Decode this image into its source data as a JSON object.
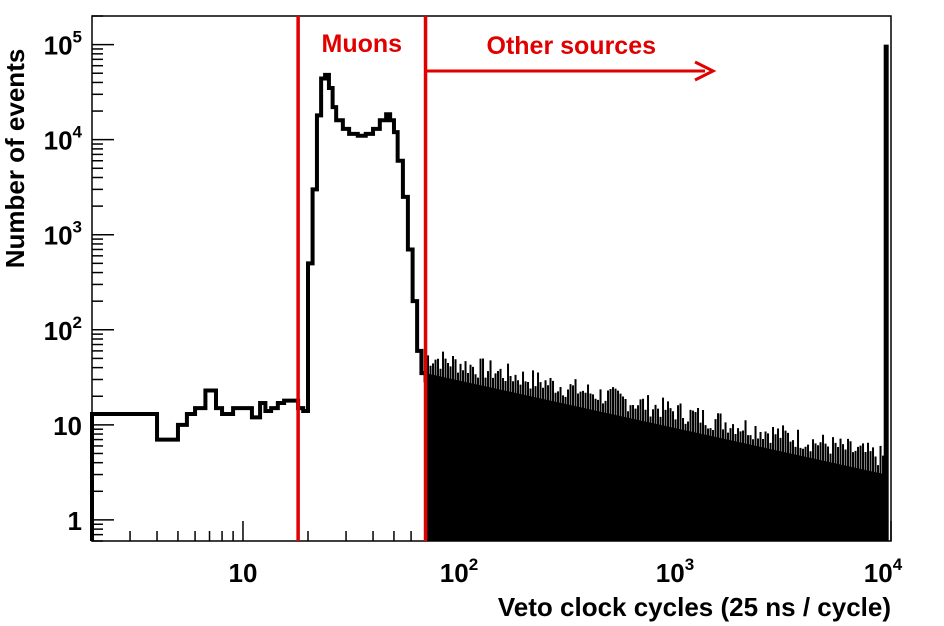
{
  "chart_data": {
    "type": "histogram",
    "xlabel": "Veto clock cycles (25 ns / cycle)",
    "ylabel": "Number of events",
    "x_scale": "log",
    "y_scale": "log",
    "xlim": [
      2,
      10000
    ],
    "ylim": [
      0.6,
      200000
    ],
    "grid": false,
    "legend": "none",
    "colors": {
      "histogram": "#000000",
      "annotation": "#e00000"
    },
    "x_ticks": [
      {
        "value": 10,
        "base": "10",
        "exp": ""
      },
      {
        "value": 100,
        "base": "10",
        "exp": "2"
      },
      {
        "value": 1000,
        "base": "10",
        "exp": "3"
      },
      {
        "value": 10000,
        "base": "10",
        "exp": "4"
      }
    ],
    "y_ticks": [
      {
        "value": 1,
        "base": "1",
        "exp": ""
      },
      {
        "value": 10,
        "base": "10",
        "exp": ""
      },
      {
        "value": 100,
        "base": "10",
        "exp": "2"
      },
      {
        "value": 1000,
        "base": "10",
        "exp": "3"
      },
      {
        "value": 10000,
        "base": "10",
        "exp": "4"
      },
      {
        "value": 100000,
        "base": "10",
        "exp": "5"
      }
    ],
    "series": [
      {
        "points": [
          [
            2,
            13
          ],
          [
            3,
            13
          ],
          [
            4,
            7
          ],
          [
            5,
            10
          ],
          [
            5.5,
            13
          ],
          [
            6,
            15
          ],
          [
            6.7,
            23
          ],
          [
            7.5,
            15
          ],
          [
            8,
            13
          ],
          [
            9,
            15
          ],
          [
            10,
            15
          ],
          [
            11,
            12
          ],
          [
            12,
            17
          ],
          [
            12.7,
            14
          ],
          [
            13.5,
            15
          ],
          [
            14.5,
            17
          ],
          [
            15.5,
            18
          ],
          [
            17,
            18
          ],
          [
            18,
            15
          ],
          [
            19,
            14
          ],
          [
            20,
            500
          ],
          [
            21,
            3000
          ],
          [
            22,
            18000
          ],
          [
            23,
            44000
          ],
          [
            24,
            48000
          ],
          [
            25,
            35000
          ],
          [
            26,
            22000
          ],
          [
            27,
            16000
          ],
          [
            29,
            13000
          ],
          [
            31,
            11500
          ],
          [
            34,
            11000
          ],
          [
            37,
            11500
          ],
          [
            40,
            13000
          ],
          [
            43,
            16000
          ],
          [
            46,
            18500
          ],
          [
            48,
            16000
          ],
          [
            50,
            12000
          ],
          [
            52,
            6000
          ],
          [
            55,
            2500
          ],
          [
            58,
            700
          ],
          [
            61,
            200
          ],
          [
            64,
            60
          ],
          [
            67,
            35
          ],
          [
            70,
            28
          ]
        ]
      }
    ],
    "noise_region": {
      "x": [
        70,
        9500
      ],
      "upper": [
        35,
        3
      ],
      "floor": 0.6
    },
    "overflow_bin": {
      "x": 9500,
      "value": 100000
    },
    "annotations": [
      {
        "text": "Muons",
        "boundary_x": 18
      },
      {
        "text": "Other sources",
        "boundary_x": 70,
        "arrow_to_x": 1500
      }
    ]
  }
}
